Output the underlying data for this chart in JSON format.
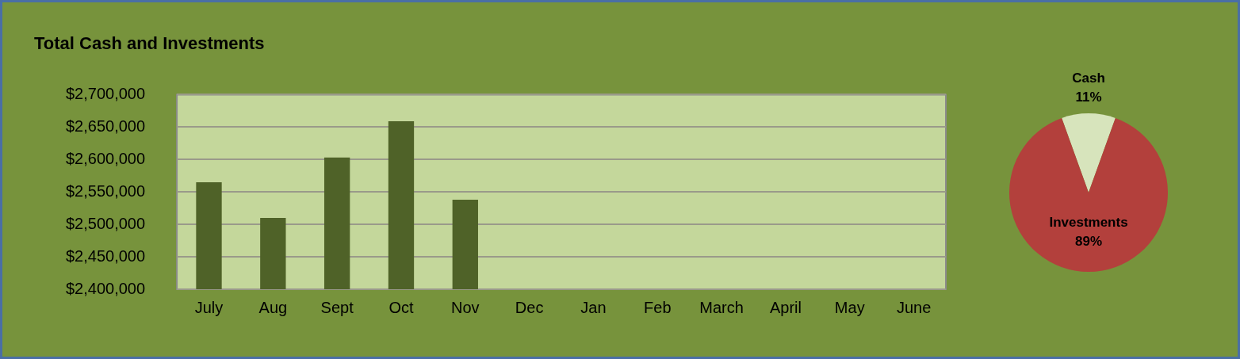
{
  "chart_data": [
    {
      "type": "bar",
      "title": "Total Cash and Investments",
      "categories": [
        "July",
        "Aug",
        "Sept",
        "Oct",
        "Nov",
        "Dec",
        "Jan",
        "Feb",
        "March",
        "April",
        "May",
        "June"
      ],
      "values": [
        2565000,
        2510000,
        2603000,
        2659000,
        2538000,
        null,
        null,
        null,
        null,
        null,
        null,
        null
      ],
      "color": "#4f6228",
      "ylim": [
        2400000,
        2700000
      ],
      "yticks": [
        {
          "value": 2400000,
          "label": "$2,400,000"
        },
        {
          "value": 2450000,
          "label": "$2,450,000"
        },
        {
          "value": 2500000,
          "label": "$2,500,000"
        },
        {
          "value": 2550000,
          "label": "$2,550,000"
        },
        {
          "value": 2600000,
          "label": "$2,600,000"
        },
        {
          "value": 2650000,
          "label": "$2,650,000"
        },
        {
          "value": 2700000,
          "label": "$2,700,000"
        }
      ],
      "grid": "y",
      "legend": false
    },
    {
      "type": "pie",
      "categories": [
        "Cash",
        "Investments"
      ],
      "values": [
        11,
        89
      ],
      "colors": [
        "#d7e4bc",
        "#b3403c"
      ],
      "value_labels": [
        "11%",
        "89%"
      ],
      "legend": false
    }
  ]
}
